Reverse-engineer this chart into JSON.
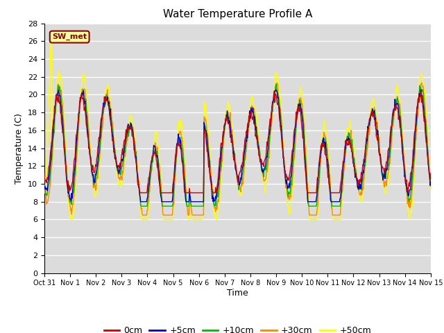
{
  "title": "Water Temperature Profile A",
  "xlabel": "Time",
  "ylabel": "Temperature (C)",
  "ylim": [
    0,
    28
  ],
  "yticks": [
    0,
    2,
    4,
    6,
    8,
    10,
    12,
    14,
    16,
    18,
    20,
    22,
    24,
    26,
    28
  ],
  "bg_color": "#dcdcdc",
  "line_colors": {
    "0cm": "#cc0000",
    "+5cm": "#0000cc",
    "+10cm": "#00bb00",
    "+30cm": "#ff8800",
    "+50cm": "#ffff00"
  },
  "legend_label": "SW_met",
  "legend_bg": "#ffff99",
  "legend_border": "#cc0000",
  "x_tick_labels": [
    "Oct 31",
    "Nov 1",
    "Nov 2",
    "Nov 3",
    "Nov 4",
    "Nov 5",
    "Nov 6",
    "Nov 7",
    "Nov 8",
    "Nov 9",
    "Nov 10",
    "Nov 11",
    "Nov 12",
    "Nov 13",
    "Nov 14",
    "Nov 15"
  ],
  "n_days": 16,
  "pts_per_day": 48
}
